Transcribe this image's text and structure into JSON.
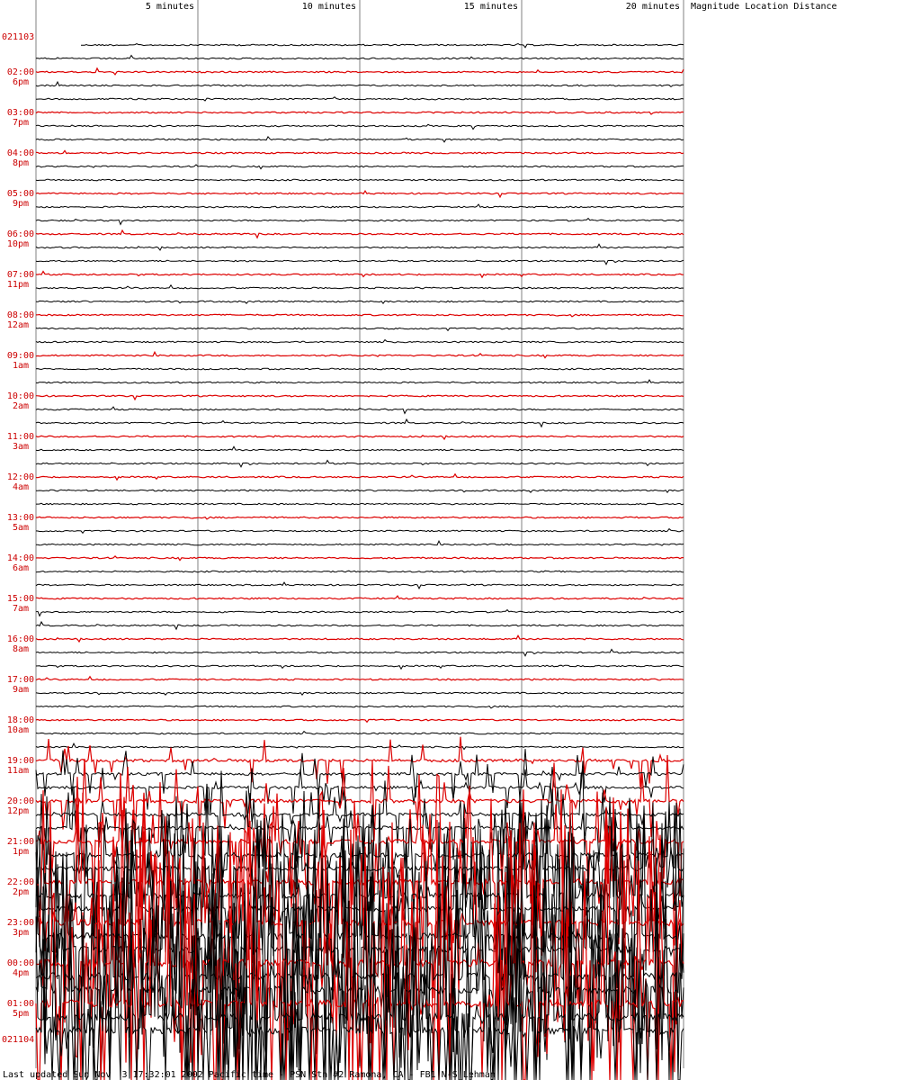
{
  "header": {
    "minute_ticks": [
      {
        "minute": 5,
        "label": "5 minutes"
      },
      {
        "minute": 10,
        "label": "10 minutes"
      },
      {
        "minute": 15,
        "label": "15 minutes"
      },
      {
        "minute": 20,
        "label": "20 minutes"
      }
    ],
    "side_columns": "Magnitude Location Distance"
  },
  "footer": {
    "text": "Last updated Sun Nov  3 17:32:01 2002 Pacific time - PSN Stn #2 Ramona, CA - FB1 N-S Lehman"
  },
  "colors": {
    "hour_trace": "#dd0000",
    "trace": "#000000",
    "grid": "#808080",
    "label": "#cc0000"
  },
  "chart_data": {
    "type": "line",
    "title": "",
    "minutes_per_trace": 20,
    "traces_per_hour": 3,
    "x_range_minutes": [
      0,
      20
    ],
    "date_labels": [
      {
        "hour_index": 0,
        "text": "021103"
      },
      {
        "hour_index": 24,
        "text": "021104"
      }
    ],
    "hour_labels": [
      {
        "utc": "02:00",
        "local": "6pm"
      },
      {
        "utc": "03:00",
        "local": "7pm"
      },
      {
        "utc": "04:00",
        "local": "8pm"
      },
      {
        "utc": "05:00",
        "local": "9pm"
      },
      {
        "utc": "06:00",
        "local": "10pm"
      },
      {
        "utc": "07:00",
        "local": "11pm"
      },
      {
        "utc": "08:00",
        "local": "12am"
      },
      {
        "utc": "09:00",
        "local": "1am"
      },
      {
        "utc": "10:00",
        "local": "2am"
      },
      {
        "utc": "11:00",
        "local": "3am"
      },
      {
        "utc": "12:00",
        "local": "4am"
      },
      {
        "utc": "13:00",
        "local": "5am"
      },
      {
        "utc": "14:00",
        "local": "6am"
      },
      {
        "utc": "15:00",
        "local": "7am"
      },
      {
        "utc": "16:00",
        "local": "8am"
      },
      {
        "utc": "17:00",
        "local": "9am"
      },
      {
        "utc": "18:00",
        "local": "10am"
      },
      {
        "utc": "19:00",
        "local": "11am"
      },
      {
        "utc": "20:00",
        "local": "12pm"
      },
      {
        "utc": "21:00",
        "local": "1pm"
      },
      {
        "utc": "22:00",
        "local": "2pm"
      },
      {
        "utc": "23:00",
        "local": "3pm"
      },
      {
        "utc": "00:00",
        "local": "4pm"
      },
      {
        "utc": "01:00",
        "local": "5pm"
      }
    ]
  }
}
